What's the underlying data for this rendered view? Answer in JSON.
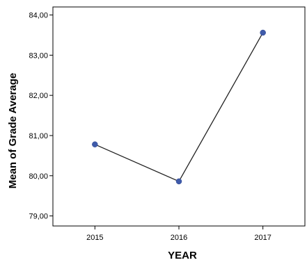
{
  "chart_data": {
    "type": "line",
    "title": "",
    "xlabel": "YEAR",
    "ylabel": "Mean of Grade Average",
    "categories": [
      "2015",
      "2016",
      "2017"
    ],
    "series": [
      {
        "values": [
          80.78,
          79.86,
          83.56
        ]
      }
    ],
    "ylim": [
      78.75,
      84.2
    ],
    "yticks": [
      79,
      80,
      81,
      82,
      83,
      84
    ],
    "ytick_labels": [
      "79,00",
      "80,00",
      "81,00",
      "82,00",
      "83,00",
      "84,00"
    ],
    "grid": false,
    "legend": "none",
    "colors": {
      "line": "#222222",
      "marker": "#3f5baa",
      "axis": "#000000"
    }
  }
}
